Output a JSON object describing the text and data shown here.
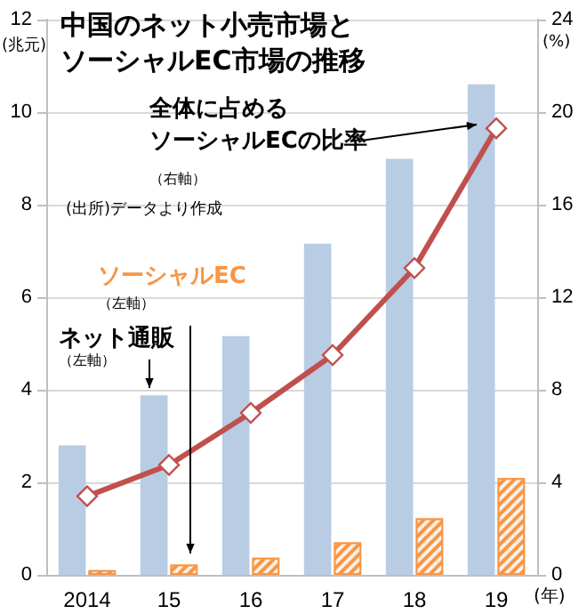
{
  "chart_data": {
    "type": "bar",
    "title": "中国のネット小売市場とソーシャルEC市場の推移",
    "ylabel": "(兆元)",
    "y2label": "(%)",
    "xlabel": "(年)",
    "categories": [
      "2014",
      "15",
      "16",
      "17",
      "18",
      "19"
    ],
    "series": [
      {
        "name": "ネット通販",
        "color": "#b8cce4",
        "values": [
          2.8,
          3.88,
          5.16,
          7.16,
          8.99,
          10.6
        ]
      },
      {
        "name": "ソーシャルEC",
        "color": "#f79646",
        "values": [
          0.1,
          0.22,
          0.37,
          0.7,
          1.22,
          2.09
        ]
      },
      {
        "name": "全体に占めるソーシャルECの比率",
        "type": "line",
        "axis": "y2",
        "color": "#c0504d",
        "marker": "diamond",
        "values": [
          3.4,
          4.75,
          7.0,
          9.5,
          13.26,
          19.3
        ]
      }
    ],
    "annotations": [
      "（右軸）",
      "(出所)データより作成",
      "（左軸）",
      "（左軸）"
    ],
    "ylim": [
      0,
      12
    ],
    "yticks": [
      0,
      2,
      4,
      6,
      8,
      10,
      12
    ],
    "y2lim": [
      0,
      24
    ],
    "y2ticks": [
      0,
      4,
      8,
      12,
      16,
      20,
      24
    ],
    "grid": "y",
    "legend": false
  }
}
